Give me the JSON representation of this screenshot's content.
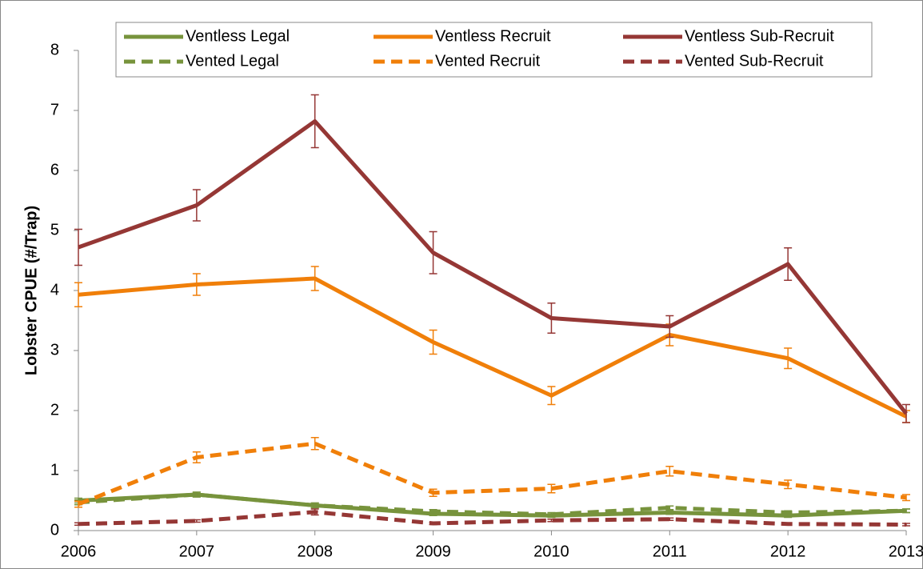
{
  "chart_data": {
    "type": "line",
    "y_label": "Lobster CPUE (#/Trap)",
    "x": [
      2006,
      2007,
      2008,
      2009,
      2010,
      2011,
      2012,
      2013
    ],
    "xlim": [
      2006,
      2013
    ],
    "xticks": [
      2006,
      2007,
      2008,
      2009,
      2010,
      2011,
      2012,
      2013
    ],
    "ylim": [
      0,
      8
    ],
    "yticks": [
      0,
      1,
      2,
      3,
      4,
      5,
      6,
      7,
      8
    ],
    "legend": "top",
    "series": [
      {
        "name": "Ventless Legal",
        "color": "#77933c",
        "style": "solid",
        "values": [
          0.5,
          0.6,
          0.42,
          0.28,
          0.25,
          0.3,
          0.25,
          0.33
        ],
        "errors": [
          0.04,
          0.04,
          0.04,
          0.03,
          0.03,
          0.03,
          0.03,
          0.03
        ]
      },
      {
        "name": "Ventless Recruit",
        "color": "#f07f09",
        "style": "solid",
        "values": [
          3.93,
          4.1,
          4.2,
          3.14,
          2.25,
          3.26,
          2.87,
          1.9
        ],
        "errors": [
          0.2,
          0.18,
          0.2,
          0.2,
          0.15,
          0.18,
          0.17,
          0.1
        ]
      },
      {
        "name": "Ventless Sub-Recruit",
        "color": "#953735",
        "style": "solid",
        "values": [
          4.72,
          5.42,
          6.82,
          4.63,
          3.54,
          3.4,
          4.44,
          1.95
        ],
        "errors": [
          0.3,
          0.26,
          0.44,
          0.35,
          0.25,
          0.18,
          0.27,
          0.15
        ]
      },
      {
        "name": "Vented Legal",
        "color": "#77933c",
        "style": "dashed",
        "values": [
          0.47,
          0.6,
          0.42,
          0.32,
          0.27,
          0.38,
          0.3,
          0.33
        ],
        "errors": [
          0.04,
          0.04,
          0.04,
          0.03,
          0.03,
          0.03,
          0.03,
          0.03
        ]
      },
      {
        "name": "Vented Recruit",
        "color": "#f07f09",
        "style": "dashed",
        "values": [
          0.44,
          1.22,
          1.45,
          0.63,
          0.7,
          0.99,
          0.77,
          0.55
        ],
        "errors": [
          0.05,
          0.09,
          0.1,
          0.06,
          0.07,
          0.08,
          0.07,
          0.05
        ]
      },
      {
        "name": "Vented Sub-Recruit",
        "color": "#953735",
        "style": "dashed",
        "values": [
          0.11,
          0.16,
          0.31,
          0.12,
          0.17,
          0.19,
          0.11,
          0.1
        ],
        "errors": [
          0.02,
          0.02,
          0.05,
          0.02,
          0.02,
          0.02,
          0.02,
          0.02
        ]
      }
    ]
  }
}
